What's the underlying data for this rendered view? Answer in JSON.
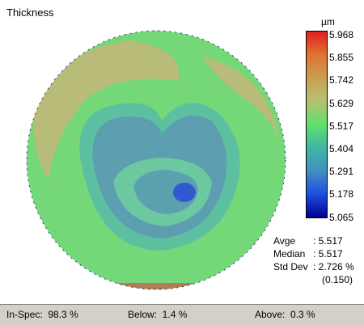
{
  "panel": {
    "title": "Thickness"
  },
  "colorbar": {
    "unit": "µm",
    "labels": [
      "5.968",
      "5.855",
      "5.742",
      "5.629",
      "5.517",
      "5.404",
      "5.291",
      "5.178",
      "5.065"
    ]
  },
  "stats": {
    "avge_label": "Avge",
    "avge": ": 5.517",
    "median_label": "Median",
    "median": ": 5.517",
    "stddev_label": "Std Dev",
    "stddev": ": 2.726 %",
    "stddev_abs": "(0.150)"
  },
  "footer": {
    "in_spec": "In-Spec:  98.3 %",
    "below": "Below:  1.4 %",
    "above": "Above:  0.3 %"
  }
}
